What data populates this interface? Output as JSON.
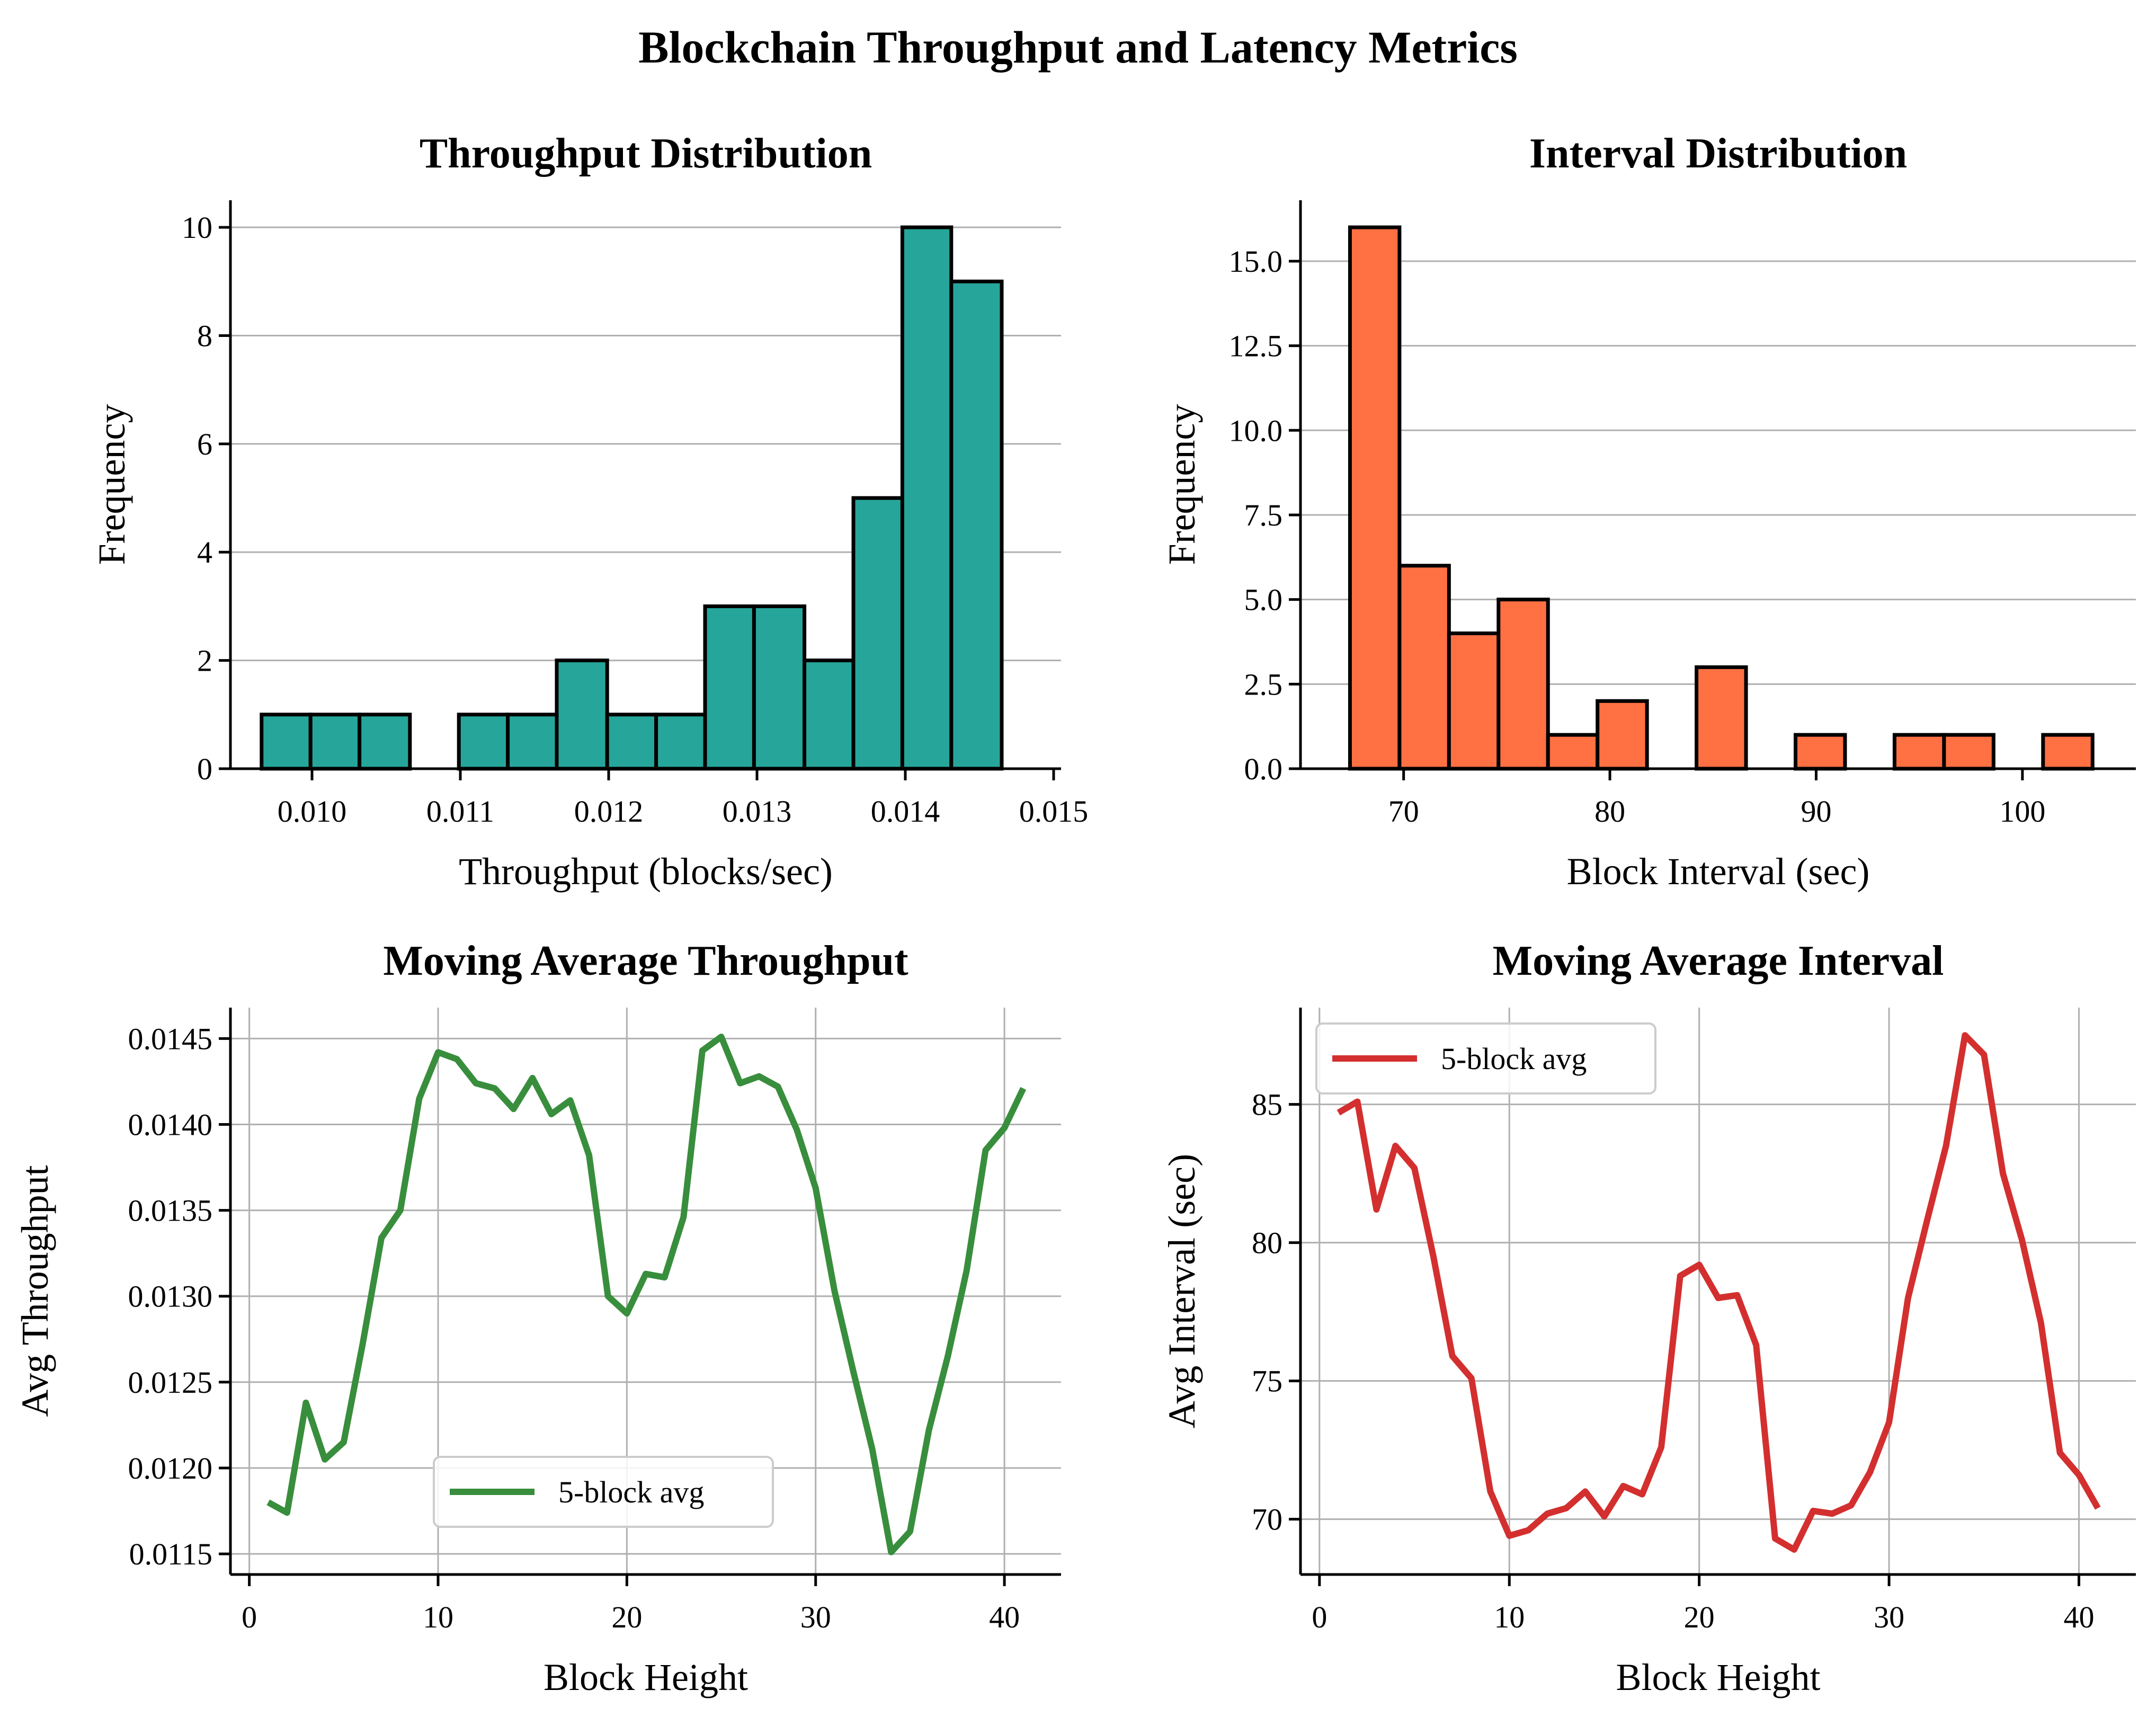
{
  "figure": {
    "title": "Blockchain Throughput and Latency Metrics"
  },
  "chart_data": [
    {
      "type": "bar",
      "title": "Throughput Distribution",
      "xlabel": "Throughput (blocks/sec)",
      "ylabel": "Frequency",
      "xlim": [
        0.00945,
        0.01505
      ],
      "ylim": [
        0,
        10.5
      ],
      "xticks": [
        "0.010",
        "0.011",
        "0.012",
        "0.013",
        "0.014",
        "0.015"
      ],
      "yticks": [
        "0",
        "2",
        "4",
        "6",
        "8",
        "10"
      ],
      "grid": "y",
      "color": "#26A69A",
      "bin_edges": [
        0.00966,
        0.00999,
        0.01032,
        0.01066,
        0.01099,
        0.01132,
        0.01165,
        0.01199,
        0.01232,
        0.01265,
        0.01298,
        0.01332,
        0.01365,
        0.01398,
        0.01431,
        0.01465
      ],
      "values": [
        1,
        1,
        1,
        0,
        1,
        1,
        2,
        1,
        1,
        3,
        3,
        2,
        5,
        10,
        9
      ]
    },
    {
      "type": "bar",
      "title": "Interval Distribution",
      "xlabel": "Block Interval (sec)",
      "ylabel": "Frequency",
      "xlim": [
        65.0,
        105.5
      ],
      "ylim": [
        0,
        16.8
      ],
      "xticks": [
        "70",
        "80",
        "90",
        "100"
      ],
      "yticks": [
        "0.0",
        "2.5",
        "5.0",
        "7.5",
        "10.0",
        "12.5",
        "15.0"
      ],
      "grid": "y",
      "color": "#FF7043",
      "bin_edges": [
        67.4,
        69.8,
        72.2,
        74.6,
        77.0,
        79.4,
        81.8,
        84.2,
        86.6,
        89.0,
        91.4,
        93.8,
        96.2,
        98.6,
        101.0,
        103.4
      ],
      "values": [
        16,
        6,
        4,
        5,
        1,
        2,
        0,
        3,
        0,
        1,
        0,
        1,
        1,
        0,
        1
      ]
    },
    {
      "type": "line",
      "title": "Moving Average Throughput",
      "xlabel": "Block Height",
      "ylabel": "Avg Throughput",
      "xlim": [
        -1.0,
        43.0
      ],
      "ylim": [
        0.01138,
        0.01468
      ],
      "xticks": [
        "0",
        "10",
        "20",
        "30",
        "40"
      ],
      "yticks": [
        "0.0115",
        "0.0120",
        "0.0125",
        "0.0130",
        "0.0135",
        "0.0140",
        "0.0145"
      ],
      "grid": "both",
      "legend": "lower center",
      "series": [
        {
          "name": "5-block avg",
          "color": "#388E3C",
          "x": [
            1,
            2,
            3,
            4,
            5,
            6,
            7,
            8,
            9,
            10,
            11,
            12,
            13,
            14,
            15,
            16,
            17,
            18,
            19,
            20,
            21,
            22,
            23,
            24,
            25,
            26,
            27,
            28,
            29,
            30,
            31,
            32,
            33,
            34,
            35,
            36,
            37,
            38,
            39,
            40,
            41
          ],
          "y": [
            0.0118,
            0.01174,
            0.01238,
            0.01205,
            0.01215,
            0.01272,
            0.01334,
            0.0135,
            0.01415,
            0.01442,
            0.01438,
            0.01424,
            0.01421,
            0.01409,
            0.01427,
            0.01406,
            0.01414,
            0.01382,
            0.013,
            0.0129,
            0.01313,
            0.01311,
            0.01346,
            0.01443,
            0.01451,
            0.01424,
            0.01428,
            0.01422,
            0.01397,
            0.01363,
            0.01303,
            0.01256,
            0.01211,
            0.01151,
            0.01163,
            0.01222,
            0.01265,
            0.01315,
            0.01385,
            0.01398,
            0.01421
          ]
        }
      ]
    },
    {
      "type": "line",
      "title": "Moving Average Interval",
      "xlabel": "Block Height",
      "ylabel": "Avg Interval (sec)",
      "xlim": [
        -1.0,
        43.0
      ],
      "ylim": [
        68.0,
        88.5
      ],
      "xticks": [
        "0",
        "10",
        "20",
        "30",
        "40"
      ],
      "yticks": [
        "70",
        "75",
        "80",
        "85"
      ],
      "grid": "both",
      "legend": "upper left",
      "series": [
        {
          "name": "5-block avg",
          "color": "#D32F2F",
          "x": [
            1,
            2,
            3,
            4,
            5,
            6,
            7,
            8,
            9,
            10,
            11,
            12,
            13,
            14,
            15,
            16,
            17,
            18,
            19,
            20,
            21,
            22,
            23,
            24,
            25,
            26,
            27,
            28,
            29,
            30,
            31,
            32,
            33,
            34,
            35,
            36,
            37,
            38,
            39,
            40,
            41
          ],
          "y": [
            84.7,
            85.1,
            81.2,
            83.5,
            82.7,
            79.5,
            75.9,
            75.1,
            71.0,
            69.4,
            69.6,
            70.2,
            70.4,
            71.0,
            70.1,
            71.2,
            70.9,
            72.6,
            78.8,
            79.2,
            78.0,
            78.1,
            76.3,
            69.3,
            68.9,
            70.3,
            70.2,
            70.5,
            71.7,
            73.5,
            78.0,
            80.8,
            83.5,
            87.5,
            86.8,
            82.5,
            80.1,
            77.1,
            72.4,
            71.6,
            70.4
          ]
        }
      ]
    }
  ]
}
